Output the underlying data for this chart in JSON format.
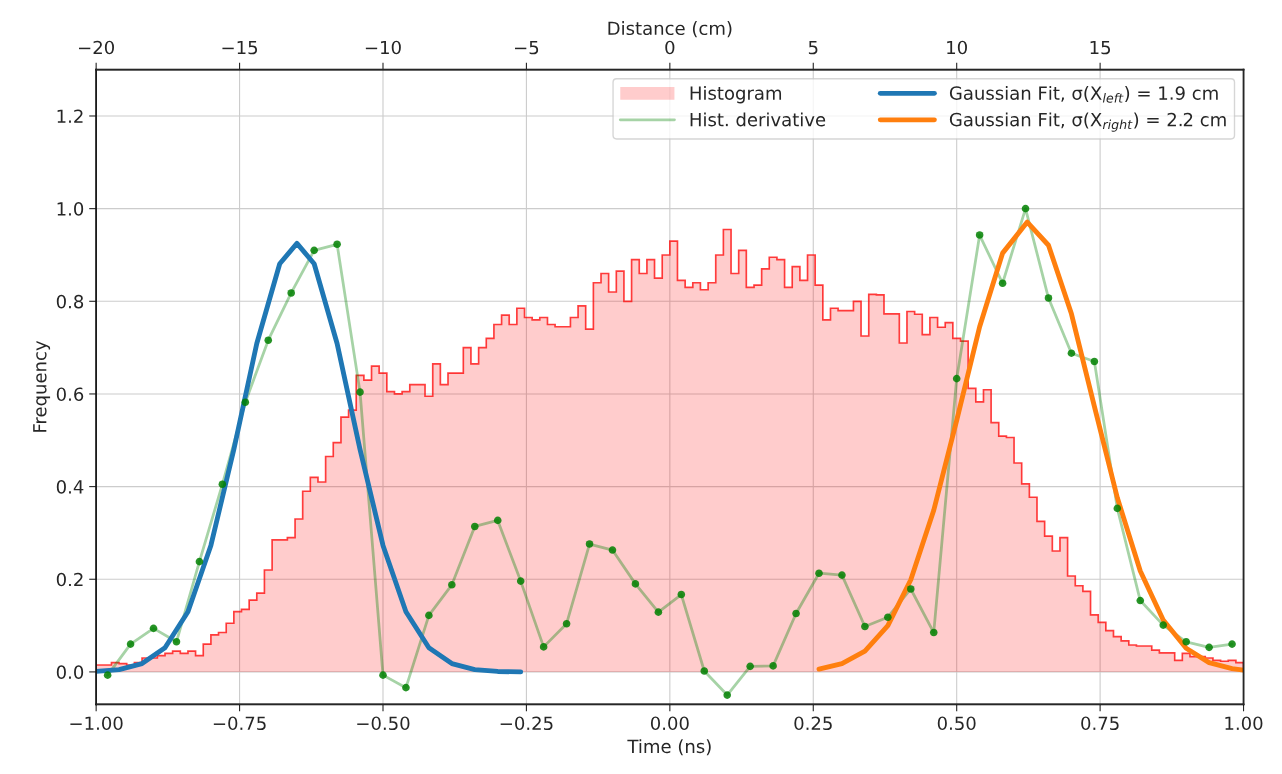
{
  "chart_data": {
    "type": "histogram",
    "xlabel": "Time (ns)",
    "ylabel": "Frequency",
    "x2label": "Distance (cm)",
    "xlim": [
      -1.0,
      1.0
    ],
    "xticks": [
      {
        "value": -1.0,
        "label": "−1.00"
      },
      {
        "value": -0.75,
        "label": "−0.75"
      },
      {
        "value": -0.5,
        "label": "−0.50"
      },
      {
        "value": -0.25,
        "label": "−0.25"
      },
      {
        "value": 0.0,
        "label": "0.00"
      },
      {
        "value": 0.25,
        "label": "0.25"
      },
      {
        "value": 0.5,
        "label": "0.50"
      },
      {
        "value": 0.75,
        "label": "0.75"
      },
      {
        "value": 1.0,
        "label": "1.00"
      }
    ],
    "x2lim": [
      -20,
      20
    ],
    "x2ticks": [
      {
        "value": -20,
        "label": "−20"
      },
      {
        "value": -15,
        "label": "−15"
      },
      {
        "value": -10,
        "label": "−10"
      },
      {
        "value": -5,
        "label": "−5"
      },
      0,
      5,
      10,
      15
    ],
    "ylim": [
      -0.07,
      1.3
    ],
    "yticks": [
      {
        "value": 0.0,
        "label": "0.0"
      },
      {
        "value": 0.2,
        "label": "0.2"
      },
      {
        "value": 0.4,
        "label": "0.4"
      },
      {
        "value": 0.6,
        "label": "0.6"
      },
      {
        "value": 0.8,
        "label": "0.8"
      },
      {
        "value": 1.0,
        "label": "1.0"
      },
      {
        "value": 1.2,
        "label": "1.2"
      }
    ],
    "grid": true,
    "legend": "top right",
    "series": [
      {
        "name": "Histogram",
        "color": "#ff0000",
        "bins": [
          -1.0,
          -0.9867,
          -0.9733,
          -0.96,
          -0.9467,
          -0.9333,
          -0.92,
          -0.9067,
          -0.8933,
          -0.88,
          -0.8667,
          -0.8533,
          -0.84,
          -0.8267,
          -0.8133,
          -0.8,
          -0.7867,
          -0.7733,
          -0.76,
          -0.7467,
          -0.7333,
          -0.72,
          -0.7067,
          -0.6933,
          -0.68,
          -0.6667,
          -0.6533,
          -0.64,
          -0.6267,
          -0.6133,
          -0.6,
          -0.5867,
          -0.5733,
          -0.56,
          -0.5467,
          -0.5333,
          -0.52,
          -0.5067,
          -0.4933,
          -0.48,
          -0.4667,
          -0.4533,
          -0.44,
          -0.4267,
          -0.4133,
          -0.4,
          -0.3867,
          -0.3733,
          -0.36,
          -0.3467,
          -0.3333,
          -0.32,
          -0.3067,
          -0.2933,
          -0.28,
          -0.2667,
          -0.2533,
          -0.24,
          -0.2267,
          -0.2133,
          -0.2,
          -0.1867,
          -0.1733,
          -0.16,
          -0.1467,
          -0.1333,
          -0.12,
          -0.1067,
          -0.0933,
          -0.08,
          -0.0667,
          -0.0533,
          -0.04,
          -0.0267,
          -0.0133,
          0,
          0.0133,
          0.0267,
          0.04,
          0.0533,
          0.0667,
          0.08,
          0.0933,
          0.1067,
          0.12,
          0.1333,
          0.1467,
          0.16,
          0.1733,
          0.1867,
          0.2,
          0.2133,
          0.2267,
          0.24,
          0.2533,
          0.2667,
          0.28,
          0.2933,
          0.3067,
          0.32,
          0.3333,
          0.3467,
          0.36,
          0.3733,
          0.3867,
          0.4,
          0.4133,
          0.4267,
          0.44,
          0.4533,
          0.4667,
          0.48,
          0.4933,
          0.5067,
          0.52,
          0.5333,
          0.5467,
          0.56,
          0.5733,
          0.5867,
          0.6,
          0.6133,
          0.6267,
          0.64,
          0.6533,
          0.6667,
          0.68,
          0.6933,
          0.7067,
          0.72,
          0.7333,
          0.7467,
          0.76,
          0.7733,
          0.7867,
          0.8,
          0.8133,
          0.8267,
          0.84,
          0.8533,
          0.8667,
          0.88,
          0.8933,
          0.9067,
          0.92,
          0.9333,
          0.9467,
          0.96,
          0.9733,
          0.9867,
          1.0
        ],
        "values": [
          0.015,
          0.015,
          0.02,
          0.018,
          0.015,
          0.02,
          0.03,
          0.03,
          0.035,
          0.04,
          0.045,
          0.04,
          0.045,
          0.035,
          0.06,
          0.08,
          0.085,
          0.105,
          0.13,
          0.135,
          0.155,
          0.17,
          0.22,
          0.285,
          0.285,
          0.29,
          0.33,
          0.39,
          0.42,
          0.41,
          0.465,
          0.495,
          0.55,
          0.565,
          0.64,
          0.63,
          0.66,
          0.645,
          0.605,
          0.6,
          0.605,
          0.62,
          0.62,
          0.595,
          0.665,
          0.62,
          0.645,
          0.645,
          0.7,
          0.665,
          0.7,
          0.72,
          0.75,
          0.77,
          0.75,
          0.785,
          0.765,
          0.76,
          0.765,
          0.75,
          0.745,
          0.745,
          0.765,
          0.79,
          0.74,
          0.84,
          0.86,
          0.82,
          0.865,
          0.8,
          0.89,
          0.86,
          0.89,
          0.85,
          0.9,
          0.93,
          0.845,
          0.83,
          0.84,
          0.825,
          0.84,
          0.9,
          0.955,
          0.86,
          0.91,
          0.83,
          0.835,
          0.87,
          0.895,
          0.89,
          0.83,
          0.875,
          0.845,
          0.9,
          0.835,
          0.76,
          0.785,
          0.78,
          0.78,
          0.8,
          0.725,
          0.815,
          0.814,
          0.773,
          0.773,
          0.71,
          0.778,
          0.772,
          0.728,
          0.765,
          0.744,
          0.754,
          0.72,
          0.714,
          0.612,
          0.583,
          0.609,
          0.538,
          0.509,
          0.506,
          0.451,
          0.406,
          0.377,
          0.325,
          0.293,
          0.261,
          0.29,
          0.207,
          0.186,
          0.174,
          0.123,
          0.107,
          0.089,
          0.076,
          0.067,
          0.058,
          0.056,
          0.056,
          0.047,
          0.041,
          0.041,
          0.025,
          0.04,
          0.033,
          0.033,
          0.03,
          0.025,
          0.023,
          0.025,
          0.02
        ]
      },
      {
        "type": "line",
        "name": "Hist. derivative",
        "color": "#008000",
        "marker": "circle",
        "x": [
          -0.98,
          -0.94,
          -0.9,
          -0.86,
          -0.82,
          -0.78,
          -0.74,
          -0.7,
          -0.66,
          -0.62,
          -0.58,
          -0.54,
          -0.5,
          -0.46,
          -0.42,
          -0.38,
          -0.34,
          -0.3,
          -0.26,
          -0.22,
          -0.18,
          -0.14,
          -0.1,
          -0.06,
          -0.02,
          0.02,
          0.06,
          0.1,
          0.14,
          0.18,
          0.22,
          0.26,
          0.3,
          0.34,
          0.38,
          0.42,
          0.46,
          0.5,
          0.54,
          0.58,
          0.62,
          0.66,
          0.7,
          0.74,
          0.78,
          0.82,
          0.86,
          0.9,
          0.94,
          0.98
        ],
        "values": [
          -0.007,
          0.06,
          0.094,
          0.065,
          0.238,
          0.405,
          0.582,
          0.716,
          0.818,
          0.91,
          0.923,
          0.604,
          -0.007,
          -0.034,
          0.122,
          0.188,
          0.314,
          0.327,
          0.196,
          0.054,
          0.104,
          0.276,
          0.263,
          0.19,
          0.129,
          0.167,
          0.002,
          -0.05,
          0.012,
          0.013,
          0.126,
          0.213,
          0.209,
          0.098,
          0.118,
          0.179,
          0.085,
          0.633,
          0.943,
          0.839,
          1.0,
          0.807,
          0.688,
          0.67,
          0.353,
          0.154,
          0.101,
          0.065,
          0.053,
          0.06
        ]
      },
      {
        "type": "line",
        "name": "Gaussian Fit, σ(X$_{left}$) = 1.9 cm",
        "color": "#1f77b4",
        "x": [
          -1.0,
          -0.96,
          -0.92,
          -0.88,
          -0.84,
          -0.8,
          -0.76,
          -0.72,
          -0.68,
          -0.65,
          -0.62,
          -0.58,
          -0.54,
          -0.5,
          -0.46,
          -0.42,
          -0.38,
          -0.34,
          -0.3,
          -0.26
        ],
        "values": [
          0.001,
          0.005,
          0.018,
          0.052,
          0.13,
          0.273,
          0.48,
          0.709,
          0.881,
          0.925,
          0.881,
          0.709,
          0.48,
          0.273,
          0.13,
          0.052,
          0.018,
          0.005,
          0.001,
          0.0
        ]
      },
      {
        "type": "line",
        "name": "Gaussian Fit, σ(X$_{right}$) = 2.2 cm",
        "color": "#ff7f0e",
        "x": [
          0.26,
          0.3,
          0.34,
          0.38,
          0.42,
          0.46,
          0.5,
          0.54,
          0.58,
          0.623,
          0.66,
          0.7,
          0.74,
          0.78,
          0.82,
          0.86,
          0.9,
          0.94,
          0.98,
          1.0
        ],
        "values": [
          0.006,
          0.018,
          0.045,
          0.1,
          0.199,
          0.349,
          0.543,
          0.745,
          0.904,
          0.971,
          0.921,
          0.773,
          0.573,
          0.376,
          0.218,
          0.112,
          0.051,
          0.02,
          0.007,
          0.004
        ]
      }
    ]
  }
}
